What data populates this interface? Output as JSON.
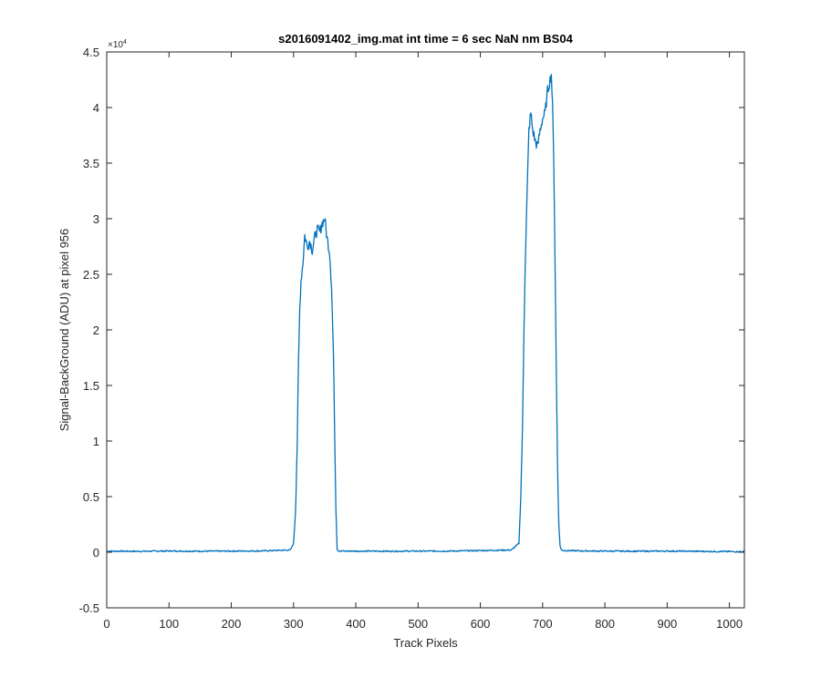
{
  "chart_data": {
    "type": "line",
    "title": "s2016091402_img.mat int time = 6 sec  NaN nm BS04",
    "xlabel": "Track Pixels",
    "ylabel": "Signal-BackGround (ADU) at pixel 956",
    "xlim": [
      0,
      1024
    ],
    "ylim": [
      -5000,
      45000
    ],
    "y_exponent": {
      "base": "×10",
      "power": "4"
    },
    "x_ticks": [
      0,
      100,
      200,
      300,
      400,
      500,
      600,
      700,
      800,
      900,
      1000
    ],
    "x_tick_labels": [
      "0",
      "100",
      "200",
      "300",
      "400",
      "500",
      "600",
      "700",
      "800",
      "900",
      "1000"
    ],
    "y_ticks": [
      -5000,
      0,
      5000,
      10000,
      15000,
      20000,
      25000,
      30000,
      35000,
      40000,
      45000
    ],
    "y_tick_labels": [
      "-0.5",
      "0",
      "0.5",
      "1",
      "1.5",
      "2",
      "2.5",
      "3",
      "3.5",
      "4",
      "4.5"
    ],
    "grid": false,
    "box": true,
    "line_color": "#0072BD",
    "series": [
      {
        "x": [
          0,
          50,
          100,
          150,
          200,
          250,
          295,
          300,
          303,
          306,
          308,
          310,
          312,
          315,
          318,
          322,
          326,
          330,
          334,
          338,
          342,
          346,
          350,
          354,
          358,
          361,
          364,
          366,
          368,
          370,
          372,
          375,
          400,
          450,
          500,
          550,
          600,
          650,
          662,
          665,
          668,
          670,
          672,
          675,
          678,
          681,
          684,
          688,
          692,
          696,
          700,
          704,
          708,
          712,
          714,
          716,
          718,
          720,
          722,
          724,
          726,
          728,
          730,
          735,
          760,
          800,
          850,
          900,
          950,
          1000,
          1024
        ],
        "y": [
          100,
          80,
          110,
          90,
          100,
          120,
          200,
          800,
          3500,
          10000,
          17000,
          22000,
          24500,
          26000,
          28500,
          27500,
          28000,
          27200,
          28300,
          29000,
          28800,
          29600,
          30000,
          28200,
          27000,
          24000,
          18000,
          11000,
          4000,
          300,
          150,
          100,
          100,
          90,
          100,
          100,
          150,
          200,
          800,
          5000,
          12000,
          20000,
          26000,
          32000,
          38000,
          39500,
          38000,
          37000,
          36500,
          38000,
          39000,
          39500,
          41500,
          42500,
          43000,
          40000,
          35000,
          26000,
          16000,
          8000,
          2500,
          600,
          200,
          150,
          120,
          100,
          90,
          100,
          80,
          60,
          50
        ]
      }
    ]
  }
}
